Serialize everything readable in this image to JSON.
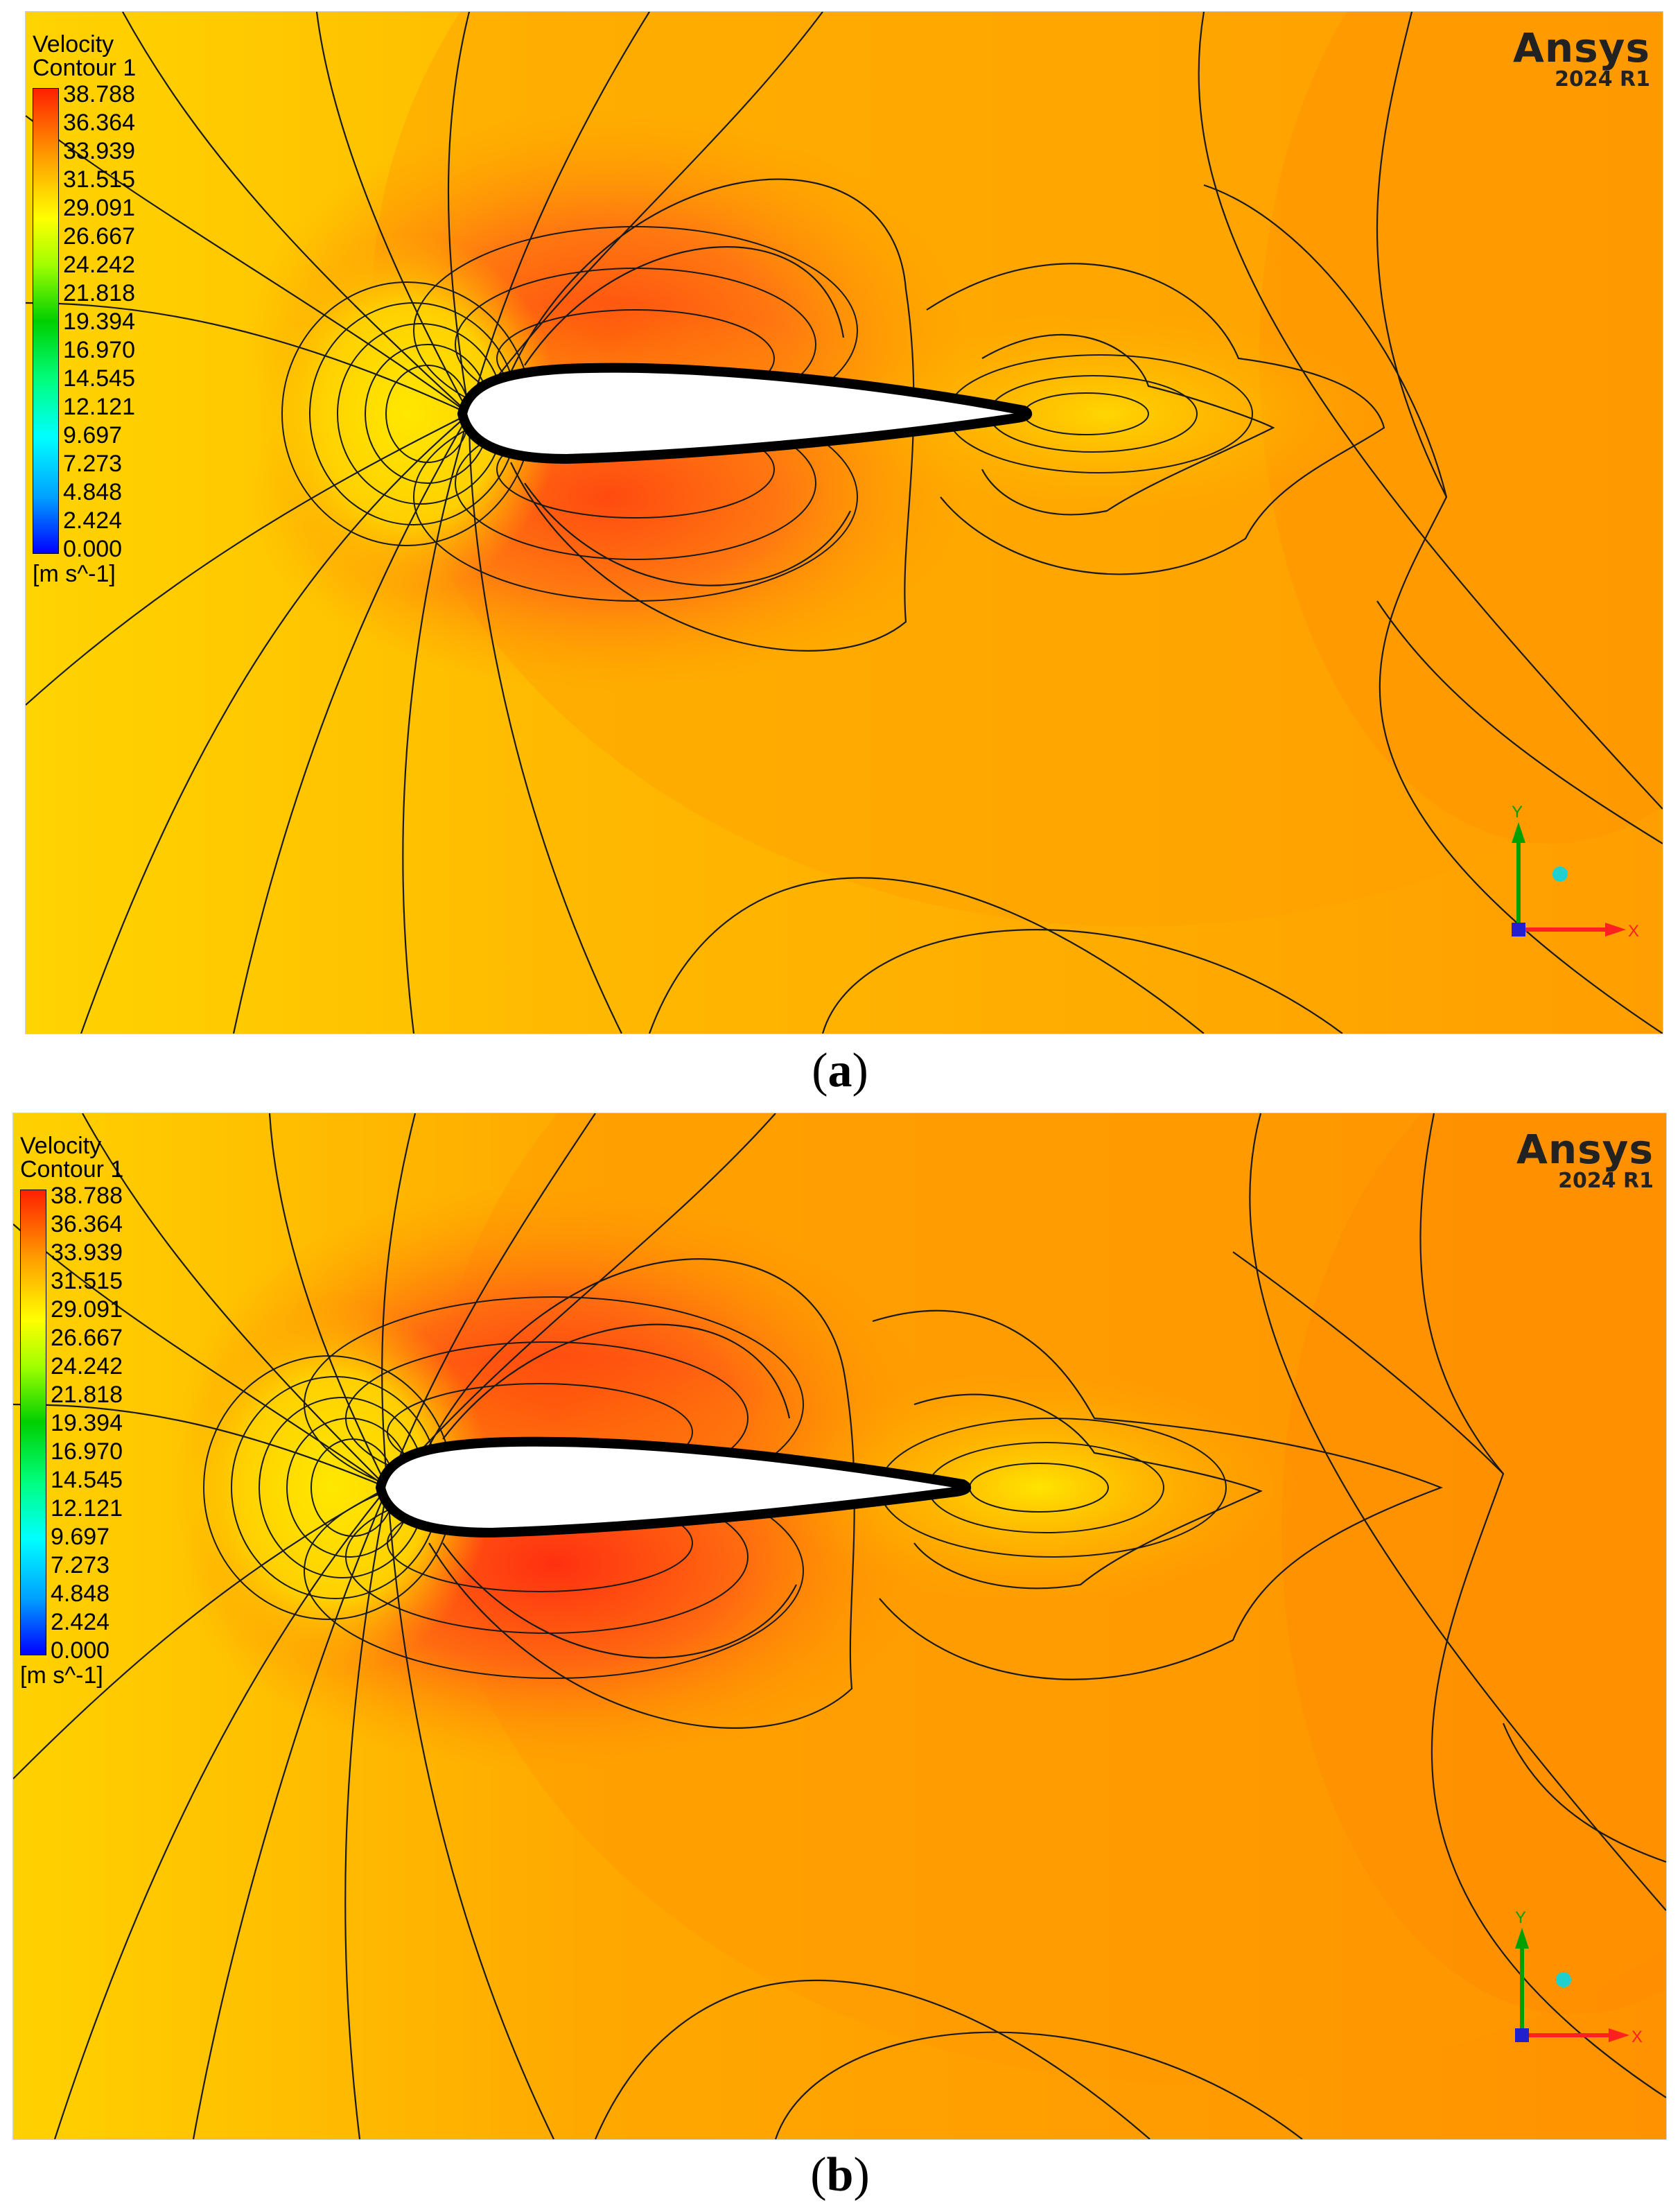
{
  "panels": [
    {
      "legend_title_line1": "Velocity",
      "legend_title_line2": "Contour 1",
      "ticks": [
        "38.788",
        "36.364",
        "33.939",
        "31.515",
        "29.091",
        "26.667",
        "24.242",
        "21.818",
        "19.394",
        "16.970",
        "14.545",
        "12.121",
        "9.697",
        "7.273",
        "4.848",
        "2.424",
        "0.000"
      ],
      "unit": "[m s^-1]",
      "brand_name": "Ansys",
      "brand_version": "2024 R1",
      "axis_y": "Y",
      "axis_x": "X",
      "caption_open": "(",
      "caption_letter": "a",
      "caption_close": ")"
    },
    {
      "legend_title_line1": "Velocity",
      "legend_title_line2": "Contour 1",
      "ticks": [
        "38.788",
        "36.364",
        "33.939",
        "31.515",
        "29.091",
        "26.667",
        "24.242",
        "21.818",
        "19.394",
        "16.970",
        "14.545",
        "12.121",
        "9.697",
        "7.273",
        "4.848",
        "2.424",
        "0.000"
      ],
      "unit": "[m s^-1]",
      "brand_name": "Ansys",
      "brand_version": "2024 R1",
      "axis_y": "Y",
      "axis_x": "X",
      "caption_open": "(",
      "caption_letter": "b",
      "caption_close": ")"
    }
  ],
  "colors": {
    "field_low": "#ffd400",
    "field_mid": "#ffb000",
    "field_high": "#ff9a00",
    "peak": "#ff5a10",
    "wake": "#ffe600",
    "contour_line": "#1a1a1a",
    "airfoil": "#ffffff"
  }
}
